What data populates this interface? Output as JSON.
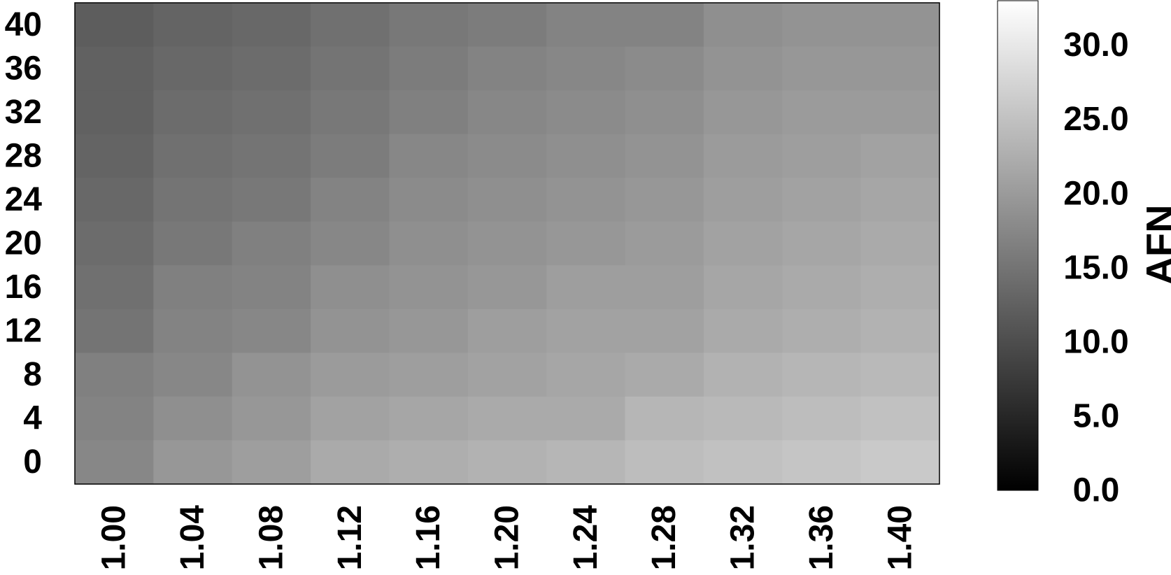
{
  "chart_data": {
    "type": "heatmap",
    "title": "",
    "xlabel": "",
    "ylabel": "",
    "colorbar_label": "AFN",
    "x": [
      "1.00",
      "1.04",
      "1.08",
      "1.12",
      "1.16",
      "1.20",
      "1.24",
      "1.28",
      "1.32",
      "1.36",
      "1.40"
    ],
    "y": [
      "40",
      "36",
      "32",
      "28",
      "24",
      "20",
      "16",
      "12",
      "8",
      "4",
      "0"
    ],
    "z": [
      [
        12.0,
        13.0,
        13.5,
        14.5,
        15.5,
        16.0,
        17.0,
        17.0,
        18.5,
        19.0,
        19.0
      ],
      [
        12.5,
        13.5,
        14.0,
        15.0,
        16.0,
        17.0,
        17.5,
        18.0,
        19.0,
        19.5,
        19.5
      ],
      [
        12.5,
        14.0,
        14.5,
        15.5,
        16.5,
        17.5,
        18.0,
        18.5,
        19.5,
        20.0,
        20.0
      ],
      [
        13.0,
        14.5,
        15.0,
        16.0,
        17.5,
        18.0,
        18.5,
        19.0,
        20.0,
        20.5,
        21.0
      ],
      [
        13.5,
        15.0,
        15.5,
        17.0,
        18.0,
        18.5,
        19.0,
        19.5,
        20.5,
        21.0,
        21.5
      ],
      [
        14.0,
        15.5,
        16.5,
        17.5,
        18.5,
        19.0,
        19.5,
        20.0,
        21.0,
        21.5,
        22.0
      ],
      [
        14.5,
        16.5,
        17.0,
        18.5,
        19.0,
        19.5,
        20.5,
        20.5,
        21.5,
        22.0,
        22.5
      ],
      [
        15.0,
        17.0,
        17.5,
        19.0,
        19.5,
        20.5,
        21.0,
        21.0,
        22.0,
        22.5,
        23.0
      ],
      [
        16.5,
        17.5,
        19.0,
        20.0,
        20.5,
        21.0,
        21.5,
        22.0,
        23.0,
        23.5,
        24.0
      ],
      [
        17.0,
        18.5,
        19.5,
        21.0,
        21.5,
        22.0,
        22.0,
        23.5,
        24.0,
        24.5,
        25.0
      ],
      [
        17.5,
        19.5,
        20.5,
        22.0,
        22.5,
        23.0,
        23.5,
        24.5,
        25.0,
        25.5,
        26.0
      ]
    ],
    "zlim": [
      0.0,
      33.0
    ],
    "colorbar_ticks": [
      "0.0",
      "5.0",
      "10.0",
      "15.0",
      "20.0",
      "25.0",
      "30.0"
    ],
    "colormap": {
      "low": "#000000",
      "high": "#ffffff"
    },
    "border_color": "#000000",
    "grid": false
  }
}
